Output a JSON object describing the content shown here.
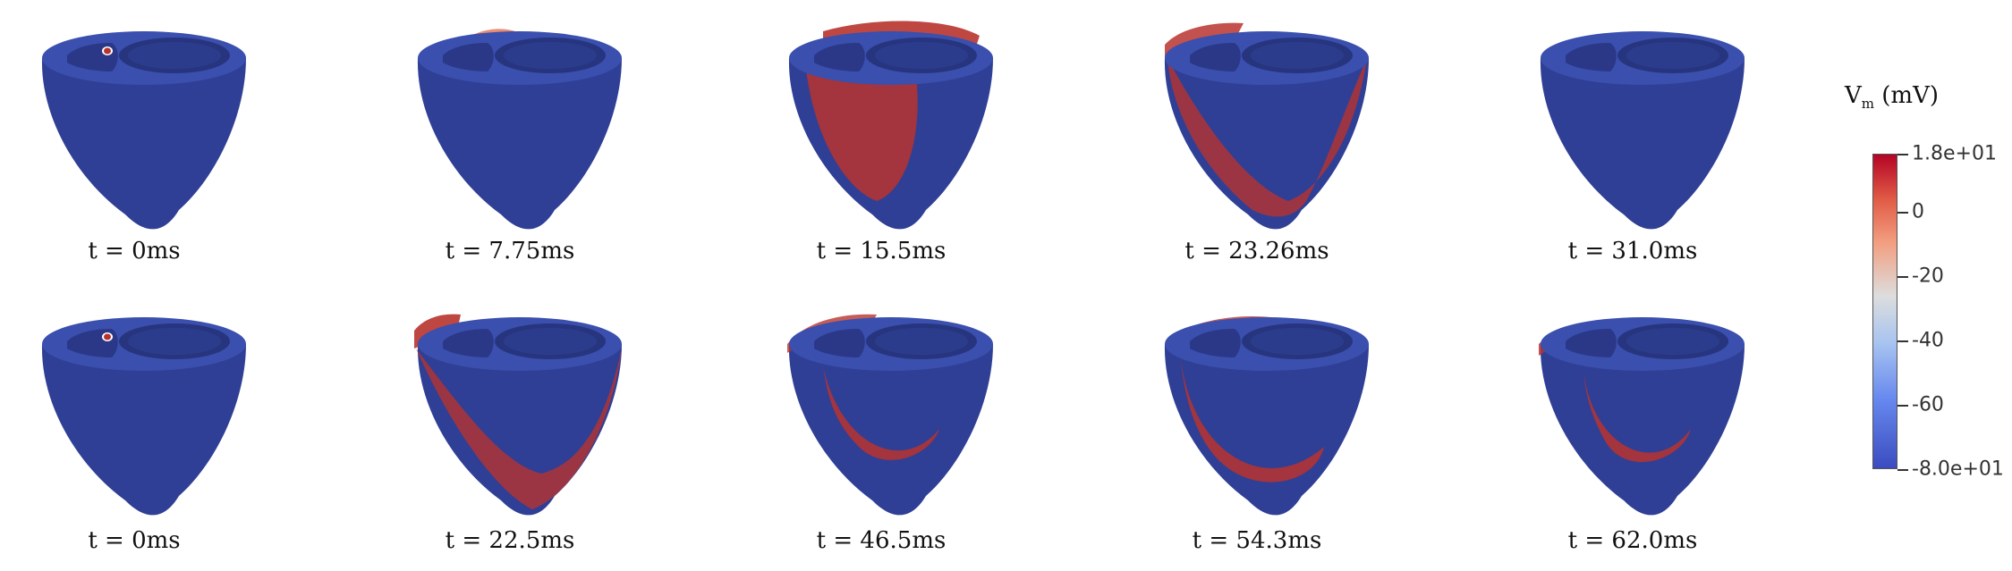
{
  "panels": [
    {
      "caption": "t = 0ms",
      "state": "stim"
    },
    {
      "caption": "t = 7.75ms",
      "state": "r1"
    },
    {
      "caption": "t = 15.5ms",
      "state": "r2"
    },
    {
      "caption": "t = 23.26ms",
      "state": "r3"
    },
    {
      "caption": "t = 31.0ms",
      "state": "rest"
    },
    {
      "caption": "t = 0ms",
      "state": "stim"
    },
    {
      "caption": "t = 22.5ms",
      "state": "s1"
    },
    {
      "caption": "t = 46.5ms",
      "state": "s2"
    },
    {
      "caption": "t = 54.3ms",
      "state": "s3"
    },
    {
      "caption": "t = 62.0ms",
      "state": "s4"
    }
  ],
  "legend": {
    "title_main": "V",
    "title_sub": "m",
    "title_unit": "(mV)",
    "ticks": [
      {
        "label": "1.8e+01",
        "value": 18
      },
      {
        "label": "0",
        "value": 0
      },
      {
        "label": "-20",
        "value": -20
      },
      {
        "label": "-40",
        "value": -40
      },
      {
        "label": "-60",
        "value": -60
      },
      {
        "label": "-8.0e+01",
        "value": -80
      }
    ],
    "range": [
      -80,
      18
    ]
  },
  "colors": {
    "rest": "#2f3f95",
    "rest_light": "#3a4fae",
    "excited": "#b8332e",
    "mid": "#e8866a"
  }
}
